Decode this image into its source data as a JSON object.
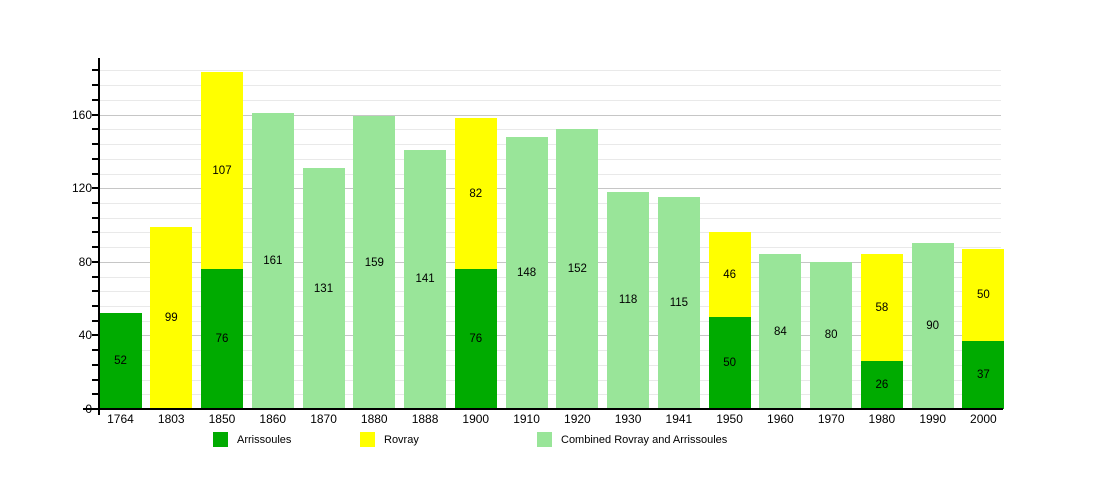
{
  "chart_data": {
    "type": "bar",
    "stacked": true,
    "title": "",
    "xlabel": "",
    "ylabel": "",
    "grid": true,
    "legend_position": "bottom",
    "categories": [
      "1764",
      "1803",
      "1850",
      "1860",
      "1870",
      "1880",
      "1888",
      "1900",
      "1910",
      "1920",
      "1930",
      "1941",
      "1950",
      "1960",
      "1970",
      "1980",
      "1990",
      "2000"
    ],
    "series": [
      {
        "name": "Arrissoules",
        "color": "#00ab00",
        "values": [
          52,
          0,
          76,
          0,
          0,
          0,
          0,
          76,
          0,
          0,
          0,
          0,
          50,
          0,
          0,
          26,
          0,
          37
        ]
      },
      {
        "name": "Rovray",
        "color": "#ffff00",
        "values": [
          0,
          99,
          107,
          0,
          0,
          0,
          0,
          82,
          0,
          0,
          0,
          0,
          46,
          0,
          0,
          58,
          0,
          50
        ]
      },
      {
        "name": "Combined Rovray and Arrissoules",
        "color": "#99e599",
        "values": [
          0,
          0,
          0,
          161,
          131,
          159,
          141,
          0,
          148,
          152,
          118,
          115,
          0,
          84,
          80,
          0,
          90,
          0
        ]
      }
    ],
    "y_axis": {
      "ticks": [
        0,
        40,
        80,
        120,
        160
      ],
      "minor_step": 8,
      "grid_max": 184,
      "ylim": [
        0,
        193
      ]
    },
    "bar_value_labels": true
  },
  "legend": {
    "items": [
      {
        "label": "Arrissoules",
        "color": "#00ab00"
      },
      {
        "label": "Rovray",
        "color": "#ffff00"
      },
      {
        "label": "Combined Rovray and Arrissoules",
        "color": "#99e599"
      }
    ]
  },
  "colors": {
    "background": "#ffffff",
    "grid_minor": "#e9e9e9",
    "grid_major": "#c6c6c6",
    "axis": "#000000",
    "text": "#000000"
  }
}
